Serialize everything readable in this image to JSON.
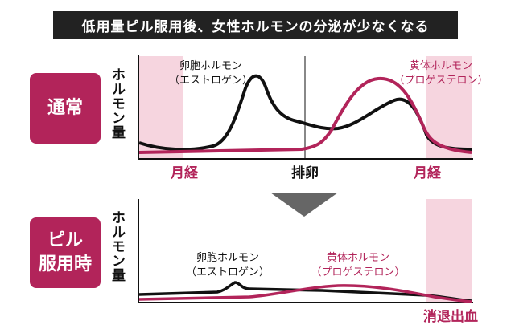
{
  "title": "低用量ピル服用後、女性ホルモンの分泌が少なくなる",
  "badges": {
    "normal": {
      "line1": "通常",
      "line2": ""
    },
    "pill": {
      "line1": "ピル",
      "line2": "服用時"
    }
  },
  "y_axis_label": "ホルモン量",
  "top_panel": {
    "estrogen_line1": "卵胞ホルモン",
    "estrogen_line2": "（エストロゲン）",
    "progesterone_line1": "黄体ホルモン",
    "progesterone_line2": "（プロゲステロン）",
    "menses_left": "月経",
    "ovulation": "排卵",
    "menses_right": "月経"
  },
  "bottom_panel": {
    "estrogen_line1": "卵胞ホルモン",
    "estrogen_line2": "（エストロゲン）",
    "progesterone_line1": "黄体ホルモン",
    "progesterone_line2": "（プロゲステロン）",
    "withdrawal_bleeding": "消退出血"
  },
  "colors": {
    "accent": "#b2245a",
    "menses_band": "#f6d5df",
    "estrogen_line": "#111111",
    "title_bg": "#222222",
    "arrow": "#666666"
  }
}
